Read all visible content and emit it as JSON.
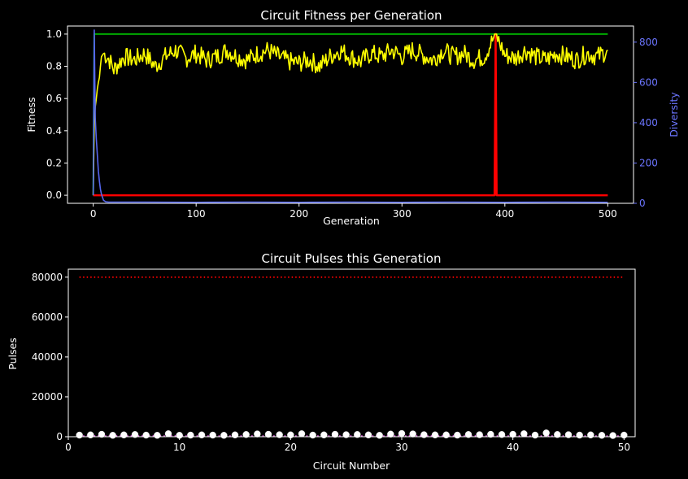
{
  "theme": {
    "background": "#000000",
    "axes_color": "#ffffff",
    "diversity_color": "#6b75ff",
    "fitness_max_color": "#00aa00",
    "fitness_avg_color": "#ffff00",
    "fitness_min_color": "#ff0000",
    "diversity_line_color": "#5566ee",
    "pulse_marker_color": "#ffffff",
    "pulse_limit_color": "#ff0000",
    "pulse_baseline_color": "#ff66ff"
  },
  "chart_data": [
    {
      "type": "line",
      "title": "Circuit Fitness per Generation",
      "xlabel": "Generation",
      "ylabel": "Fitness",
      "y2label": "Diversity",
      "xlim": [
        -25,
        525
      ],
      "ylim": [
        -0.05,
        1.05
      ],
      "y2lim": [
        0,
        880
      ],
      "xticks": [
        0,
        100,
        200,
        300,
        400,
        500
      ],
      "yticks": [
        0.0,
        0.2,
        0.4,
        0.6,
        0.8,
        1.0
      ],
      "y2ticks": [
        0,
        200,
        400,
        600,
        800
      ],
      "grid": false,
      "series": [
        {
          "axis": "left",
          "color": "#00aa00",
          "points": [
            [
              0,
              0.0
            ],
            [
              1,
              1.0
            ],
            [
              500,
              1.0
            ]
          ]
        },
        {
          "axis": "left",
          "color": "#ff0000",
          "points": [
            [
              0,
              0.0
            ],
            [
              390,
              0.0
            ],
            [
              391,
              1.0
            ],
            [
              392,
              0.0
            ],
            [
              500,
              0.0
            ]
          ]
        },
        {
          "axis": "left",
          "color": "#ffff00",
          "generator": "avg_fitness",
          "points": [
            [
              0,
              0.0
            ],
            [
              1,
              0.45
            ],
            [
              2,
              0.55
            ],
            [
              3,
              0.6
            ],
            [
              4,
              0.66
            ],
            [
              5,
              0.7
            ],
            [
              6,
              0.73
            ],
            [
              7,
              0.8
            ],
            [
              8,
              0.86
            ],
            [
              10,
              0.88
            ],
            [
              15,
              0.85
            ],
            [
              20,
              0.78
            ],
            [
              25,
              0.82
            ],
            [
              30,
              0.86
            ],
            [
              40,
              0.84
            ],
            [
              50,
              0.88
            ],
            [
              60,
              0.8
            ],
            [
              70,
              0.86
            ],
            [
              80,
              0.9
            ],
            [
              90,
              0.85
            ],
            [
              100,
              0.88
            ],
            [
              110,
              0.84
            ],
            [
              120,
              0.86
            ],
            [
              130,
              0.9
            ],
            [
              140,
              0.86
            ],
            [
              150,
              0.84
            ],
            [
              160,
              0.88
            ],
            [
              170,
              0.9
            ],
            [
              180,
              0.86
            ],
            [
              190,
              0.83
            ],
            [
              200,
              0.82
            ],
            [
              210,
              0.84
            ],
            [
              220,
              0.8
            ],
            [
              230,
              0.86
            ],
            [
              240,
              0.9
            ],
            [
              250,
              0.86
            ],
            [
              260,
              0.83
            ],
            [
              270,
              0.88
            ],
            [
              280,
              0.86
            ],
            [
              290,
              0.9
            ],
            [
              300,
              0.86
            ],
            [
              310,
              0.9
            ],
            [
              320,
              0.87
            ],
            [
              330,
              0.84
            ],
            [
              340,
              0.9
            ],
            [
              350,
              0.86
            ],
            [
              360,
              0.88
            ],
            [
              370,
              0.84
            ],
            [
              380,
              0.86
            ],
            [
              391,
              1.0
            ],
            [
              400,
              0.87
            ],
            [
              410,
              0.85
            ],
            [
              420,
              0.9
            ],
            [
              430,
              0.86
            ],
            [
              440,
              0.84
            ],
            [
              450,
              0.88
            ],
            [
              460,
              0.86
            ],
            [
              470,
              0.84
            ],
            [
              480,
              0.88
            ],
            [
              490,
              0.86
            ],
            [
              500,
              0.9
            ]
          ]
        },
        {
          "axis": "right",
          "color": "#5566ee",
          "points": [
            [
              0,
              40
            ],
            [
              1,
              860
            ],
            [
              2,
              420
            ],
            [
              3,
              320
            ],
            [
              4,
              240
            ],
            [
              5,
              160
            ],
            [
              6,
              110
            ],
            [
              7,
              70
            ],
            [
              8,
              45
            ],
            [
              9,
              30
            ],
            [
              10,
              15
            ],
            [
              12,
              8
            ],
            [
              15,
              6
            ],
            [
              50,
              6
            ],
            [
              100,
              5
            ],
            [
              150,
              6
            ],
            [
              200,
              5
            ],
            [
              250,
              6
            ],
            [
              300,
              5
            ],
            [
              350,
              6
            ],
            [
              400,
              5
            ],
            [
              450,
              6
            ],
            [
              500,
              5
            ]
          ]
        }
      ]
    },
    {
      "type": "scatter",
      "title": "Circuit Pulses this Generation",
      "xlabel": "Circuit Number",
      "ylabel": "Pulses",
      "xlim": [
        0,
        51
      ],
      "ylim": [
        0,
        84000
      ],
      "xticks": [
        0,
        10,
        20,
        30,
        40,
        50
      ],
      "yticks": [
        0,
        20000,
        40000,
        60000,
        80000
      ],
      "grid": false,
      "limit_line": 80000,
      "baseline_line": 400,
      "series": [
        {
          "color": "#ffffff",
          "x": [
            1,
            2,
            3,
            4,
            5,
            6,
            7,
            8,
            9,
            10,
            11,
            12,
            13,
            14,
            15,
            16,
            17,
            18,
            19,
            20,
            21,
            22,
            23,
            24,
            25,
            26,
            27,
            28,
            29,
            30,
            31,
            32,
            33,
            34,
            35,
            36,
            37,
            38,
            39,
            40,
            41,
            42,
            43,
            44,
            45,
            46,
            47,
            48,
            49,
            50
          ],
          "y": [
            800,
            900,
            1200,
            700,
            900,
            1100,
            800,
            700,
            1500,
            700,
            800,
            900,
            800,
            700,
            900,
            1100,
            1400,
            1200,
            1000,
            900,
            1500,
            800,
            900,
            1200,
            1000,
            1100,
            900,
            700,
            1300,
            1600,
            1400,
            1000,
            900,
            900,
            800,
            1100,
            1000,
            1200,
            1100,
            1200,
            1500,
            800,
            1900,
            1100,
            1000,
            800,
            900,
            700,
            600,
            800
          ]
        }
      ]
    }
  ]
}
